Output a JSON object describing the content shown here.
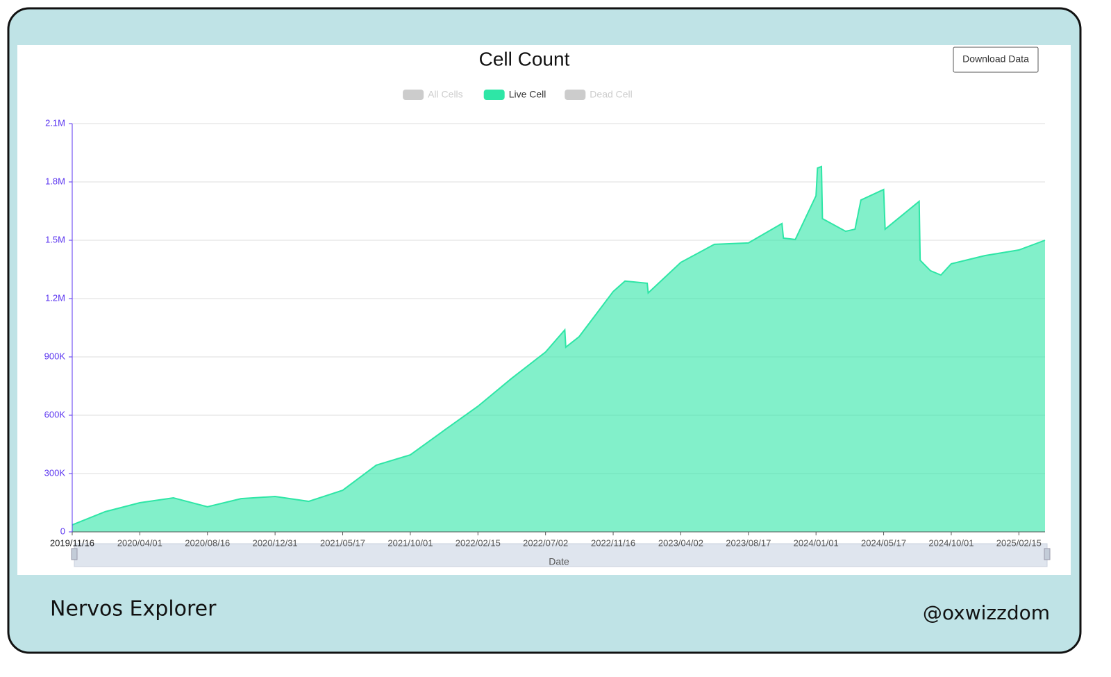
{
  "chart_data": {
    "type": "area",
    "title": "Cell Count",
    "x_label": "Date",
    "series": [
      {
        "name": "All Cells",
        "color": "#cccccc",
        "visible": false
      },
      {
        "name": "Live Cell",
        "color": "#2ee6a6",
        "visible": true,
        "values": [
          36000,
          104000,
          150000,
          175000,
          129000,
          171000,
          182000,
          157000,
          214000,
          343000,
          396000,
          521000,
          646000,
          789000,
          925000,
          1039000,
          950000,
          1004000,
          1236000,
          1290000,
          1279000,
          1229000,
          1386000,
          1479000,
          1486000,
          1586000,
          1511000,
          1504000,
          1729000,
          1871000,
          1879000,
          1611000,
          1546000,
          1557000,
          1707000,
          1761000,
          1557000,
          1700000,
          1397000,
          1343000,
          1321000,
          1379000,
          1421000,
          1450000,
          1500000
        ]
      },
      {
        "name": "Dead Cell",
        "color": "#cccccc",
        "visible": false
      }
    ],
    "x": [
      "2019/11/16",
      "2020/01/22",
      "2020/04/01",
      "2020/06/08",
      "2020/08/16",
      "2020/10/23",
      "2020/12/31",
      "2021/03/09",
      "2021/05/17",
      "2021/07/24",
      "2021/10/01",
      "2021/12/08",
      "2022/02/15",
      "2022/04/24",
      "2022/07/02",
      "2022/08/10",
      "2022/08/12",
      "2022/09/08",
      "2022/11/16",
      "2022/12/10",
      "2023/01/24",
      "2023/01/26",
      "2023/04/02",
      "2023/06/09",
      "2023/08/17",
      "2023/10/24",
      "2023/10/27",
      "2023/11/20",
      "2024/01/01",
      "2024/01/04",
      "2024/01/12",
      "2024/01/14",
      "2024/03/01",
      "2024/03/20",
      "2024/04/01",
      "2024/05/17",
      "2024/05/20",
      "2024/07/28",
      "2024/07/30",
      "2024/08/20",
      "2024/09/10",
      "2024/10/01",
      "2024/12/08",
      "2025/02/15",
      "2025/04/09"
    ],
    "xlim": [
      "2019/11/16",
      "2025/04/09"
    ],
    "xticks": [
      "2019/11/16",
      "2020/04/01",
      "2020/08/16",
      "2020/12/31",
      "2021/05/17",
      "2021/10/01",
      "2022/02/15",
      "2022/07/02",
      "2022/11/16",
      "2023/04/02",
      "2023/08/17",
      "2024/01/01",
      "2024/05/17",
      "2024/10/01",
      "2025/02/15"
    ],
    "ylim": [
      0,
      2100000
    ],
    "yticks": [
      0,
      {
        "value": 300000,
        "label": "300K"
      },
      {
        "value": 600000,
        "label": "600K"
      },
      {
        "value": 900000,
        "label": "900K"
      },
      {
        "value": 1200000,
        "label": "1.2M"
      },
      {
        "value": 1500000,
        "label": "1.5M"
      },
      {
        "value": 1800000,
        "label": "1.8M"
      },
      {
        "value": 2100000,
        "label": "2.1M"
      }
    ],
    "grid": true
  },
  "ui": {
    "download_button": "Download Data",
    "brand": "Nervos Explorer",
    "handle": "@oxwizzdom"
  }
}
